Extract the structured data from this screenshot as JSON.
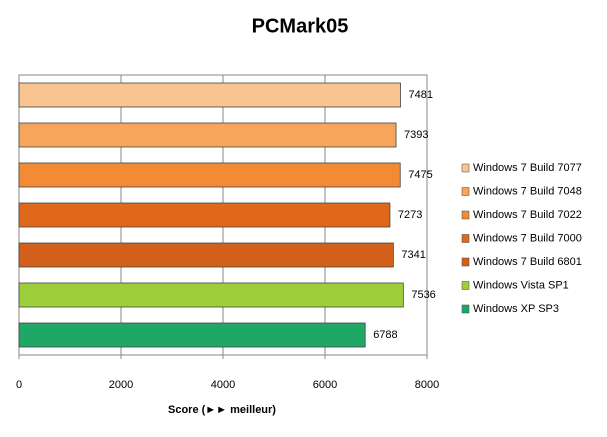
{
  "chart_data": {
    "type": "bar",
    "orientation": "horizontal",
    "title": "PCMark05",
    "xlabel": "Score (►► meilleur)",
    "series": [
      {
        "name": "Windows 7 Build 7077",
        "color": "#f9c48f",
        "values": [
          7481
        ]
      },
      {
        "name": "Windows 7 Build 7048",
        "color": "#f7a55a",
        "values": [
          7393
        ]
      },
      {
        "name": "Windows 7 Build 7022",
        "color": "#f38b34",
        "values": [
          7475
        ]
      },
      {
        "name": "Windows 7 Build 7000",
        "color": "#e0681a",
        "values": [
          7273
        ]
      },
      {
        "name": "Windows 7 Build 6801",
        "color": "#d2601a",
        "values": [
          7341
        ]
      },
      {
        "name": "Windows Vista SP1",
        "color": "#9ccf3a",
        "values": [
          7536
        ]
      },
      {
        "name": "Windows XP SP3",
        "color": "#1fa865",
        "values": [
          6788
        ]
      }
    ],
    "xlim": [
      0,
      8000
    ],
    "xticks": [
      0,
      2000,
      4000,
      6000,
      8000
    ],
    "grid": true,
    "legend": "right"
  }
}
